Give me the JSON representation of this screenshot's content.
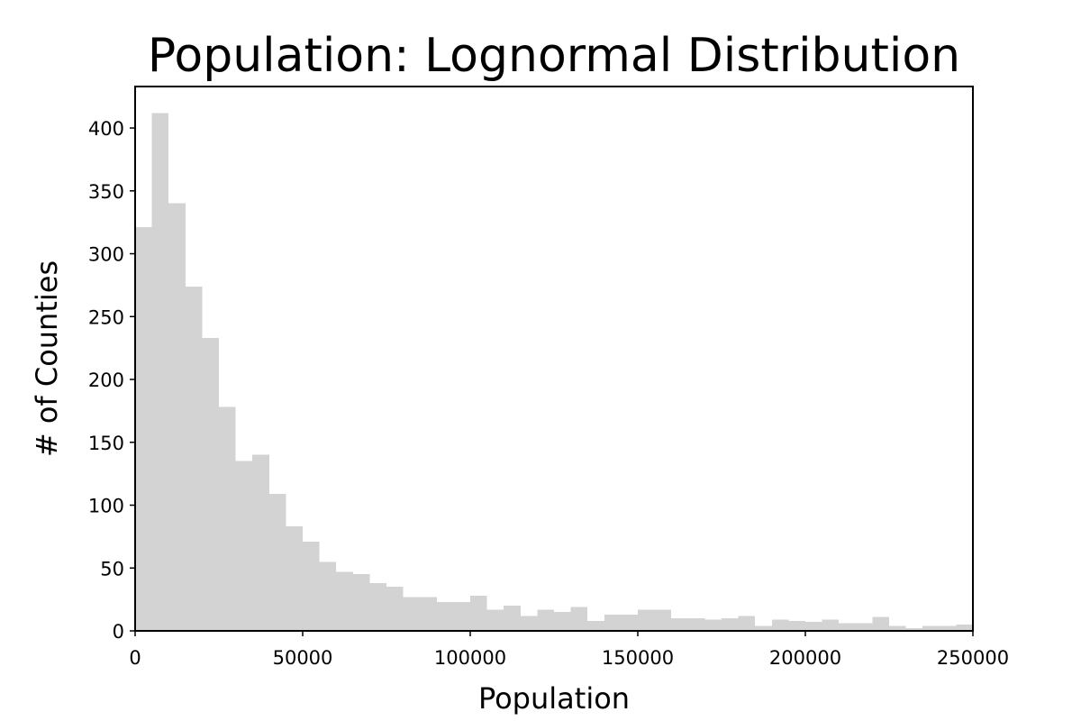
{
  "chart_data": {
    "type": "bar",
    "title": "Population: Lognormal Distribution",
    "xlabel": "Population",
    "ylabel": "# of Counties",
    "xlim": [
      0,
      250000
    ],
    "ylim": [
      0,
      433
    ],
    "xticks": [
      0,
      50000,
      100000,
      150000,
      200000,
      250000
    ],
    "xtick_labels": [
      "0",
      "50000",
      "100000",
      "150000",
      "200000",
      "250000"
    ],
    "yticks": [
      0,
      50,
      100,
      150,
      200,
      250,
      300,
      350,
      400
    ],
    "ytick_labels": [
      "0",
      "50",
      "100",
      "150",
      "200",
      "250",
      "300",
      "350",
      "400"
    ],
    "grid": false,
    "bar_color": "#d3d3d3",
    "bin_width": 5000,
    "bin_starts": [
      0,
      5000,
      10000,
      15000,
      20000,
      25000,
      30000,
      35000,
      40000,
      45000,
      50000,
      55000,
      60000,
      65000,
      70000,
      75000,
      80000,
      85000,
      90000,
      95000,
      100000,
      105000,
      110000,
      115000,
      120000,
      125000,
      130000,
      135000,
      140000,
      145000,
      150000,
      155000,
      160000,
      165000,
      170000,
      175000,
      180000,
      185000,
      190000,
      195000,
      200000,
      205000,
      210000,
      215000,
      220000,
      225000,
      230000,
      235000,
      240000,
      245000
    ],
    "values": [
      321,
      412,
      340,
      274,
      233,
      178,
      135,
      140,
      109,
      83,
      71,
      55,
      47,
      45,
      38,
      35,
      27,
      27,
      23,
      23,
      28,
      17,
      20,
      12,
      17,
      15,
      19,
      8,
      13,
      13,
      17,
      17,
      10,
      10,
      9,
      10,
      12,
      4,
      9,
      8,
      7,
      9,
      6,
      6,
      11,
      4,
      2,
      4,
      4,
      5
    ]
  }
}
